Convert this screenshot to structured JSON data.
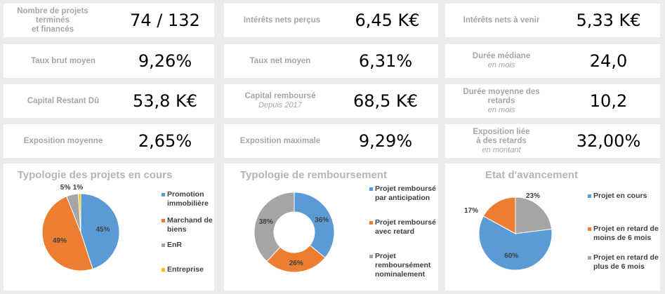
{
  "kpis": {
    "projets": {
      "label": "Nombre de projets terminés\net financés",
      "value": "74 / 132"
    },
    "interets_percus": {
      "label": "Intérêts nets perçus",
      "value": "6,45 K€"
    },
    "interets_venir": {
      "label": "Intérêts nets à venir",
      "value": "5,33 K€"
    },
    "taux_brut": {
      "label": "Taux brut moyen",
      "value": "9,26%"
    },
    "taux_net": {
      "label": "Taux net moyen",
      "value": "6,31%"
    },
    "duree_mediane": {
      "label": "Durée médiane",
      "sub": "en mois",
      "value": "24,0"
    },
    "capital_restant": {
      "label": "Capital Restant Dû",
      "value": "53,8 K€"
    },
    "capital_rembourse": {
      "label": "Capital remboursé",
      "sub": "Depuis 2017",
      "value": "68,5 K€"
    },
    "duree_retards": {
      "label": "Durée moyenne des\nretards",
      "sub": "en mois",
      "value": "10,2"
    },
    "expo_moyenne": {
      "label": "Exposition moyenne",
      "value": "2,65%"
    },
    "expo_max": {
      "label": "Exposition maximale",
      "value": "9,29%"
    },
    "expo_retards": {
      "label": "Exposition liée\nà des retards",
      "sub": "en montant",
      "value": "32,00%"
    }
  },
  "chart_data": [
    {
      "type": "pie",
      "title": "Typologie des projets en cours",
      "categories": [
        "Promotion immobilière",
        "Marchand de biens",
        "EnR",
        "Entreprise"
      ],
      "values": [
        45,
        49,
        5,
        1
      ],
      "labels": [
        "45%",
        "49%",
        "5%",
        "1%"
      ],
      "colors": [
        "#5b9bd5",
        "#ed7d31",
        "#a5a5a5",
        "#ffc000"
      ],
      "legend": "right"
    },
    {
      "type": "pie",
      "subtype": "donut",
      "title": "Typologie de remboursement",
      "categories": [
        "Projet remboursé par anticipation",
        "Projet remboursé avec retard",
        "Projet remboursément nominalement"
      ],
      "values": [
        36,
        26,
        38
      ],
      "labels": [
        "36%",
        "26%",
        "38%"
      ],
      "colors": [
        "#5b9bd5",
        "#ed7d31",
        "#a5a5a5"
      ],
      "legend": "right"
    },
    {
      "type": "pie",
      "title": "Etat d'avancement",
      "categories": [
        "Projet en cours",
        "Projet en retard de moins de 6 mois",
        "Projet en retard de plus de 6 mois"
      ],
      "values": [
        60,
        17,
        23
      ],
      "labels": [
        "60%",
        "17%",
        "23%"
      ],
      "colors": [
        "#5b9bd5",
        "#ed7d31",
        "#a5a5a5"
      ],
      "legend": "right"
    }
  ]
}
